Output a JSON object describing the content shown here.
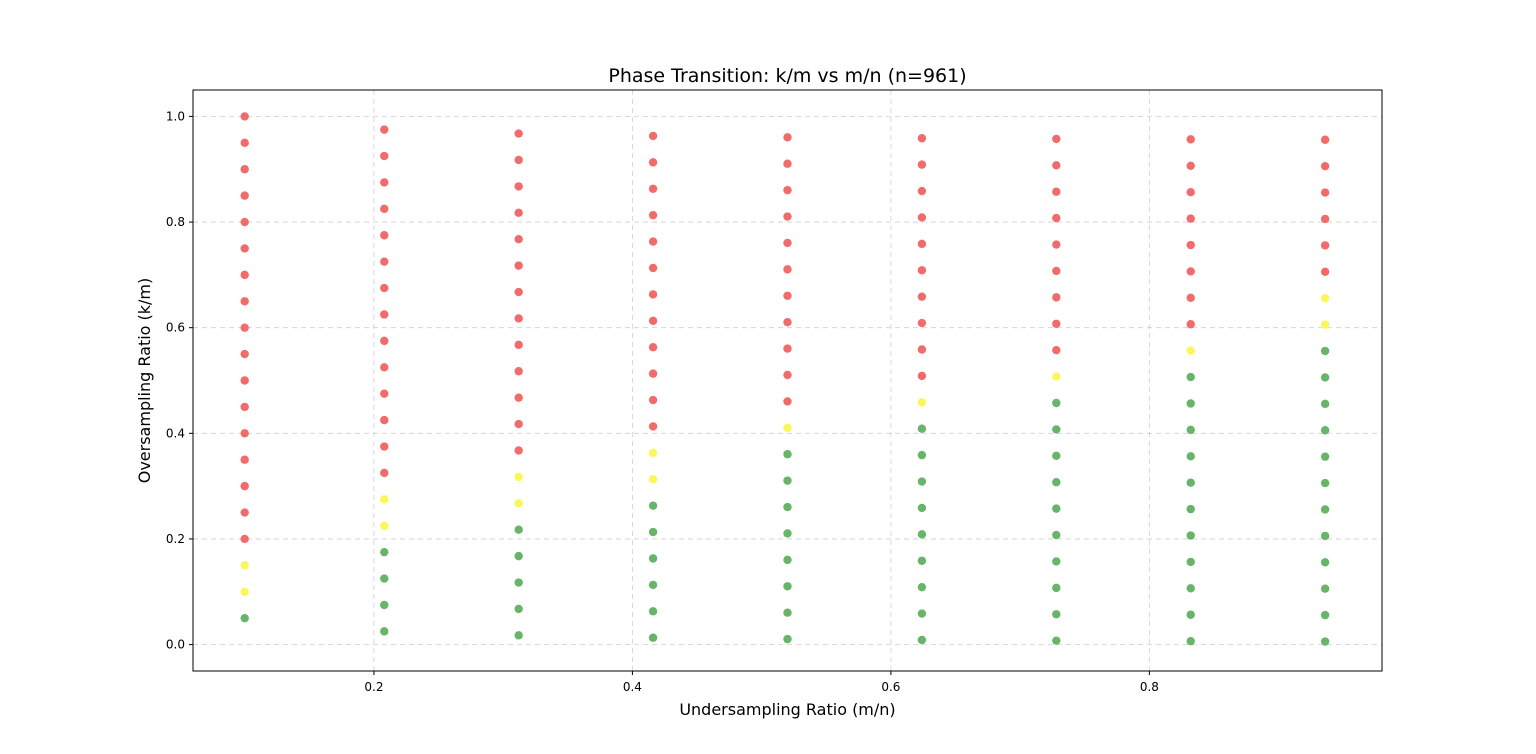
{
  "chart_data": {
    "type": "scatter",
    "title": "Phase Transition: k/m vs m/n (n=961)",
    "xlabel": "Undersampling Ratio (m/n)",
    "ylabel": "Oversampling Ratio (k/m)",
    "xlim": [
      0.06,
      0.98
    ],
    "ylim": [
      -0.05,
      1.05
    ],
    "xticks": [
      "0.2",
      "0.4",
      "0.6",
      "0.8"
    ],
    "yticks": [
      "0.0",
      "0.2",
      "0.4",
      "0.6",
      "0.8",
      "1.0"
    ],
    "grid": true,
    "colors": {
      "red": "#f26b6b",
      "yellow": "#fbf75a",
      "green": "#68b468"
    },
    "columns": [
      {
        "x": 0.1,
        "k0": 0.05,
        "step": 0.05,
        "n": 20,
        "green": 1,
        "yellow": 2
      },
      {
        "x": 0.2,
        "k0": 0.025,
        "step": 0.05,
        "n": 20,
        "green": 4,
        "yellow": 2
      },
      {
        "x": 0.3,
        "k0": 0.0175,
        "step": 0.05,
        "n": 20,
        "green": 5,
        "yellow": 2
      },
      {
        "x": 0.4,
        "k0": 0.013,
        "step": 0.05,
        "n": 20,
        "green": 6,
        "yellow": 2
      },
      {
        "x": 0.5,
        "k0": 0.0104,
        "step": 0.05,
        "n": 20,
        "green": 8,
        "yellow": 1
      },
      {
        "x": 0.6,
        "k0": 0.0087,
        "step": 0.05,
        "n": 20,
        "green": 9,
        "yellow": 1
      },
      {
        "x": 0.7,
        "k0": 0.0074,
        "step": 0.05,
        "n": 20,
        "green": 10,
        "yellow": 1
      },
      {
        "x": 0.8,
        "k0": 0.0065,
        "step": 0.05,
        "n": 20,
        "green": 11,
        "yellow": 1
      },
      {
        "x": 0.9,
        "k0": 0.0058,
        "step": 0.05,
        "n": 20,
        "green": 12,
        "yellow": 2
      }
    ],
    "column_x_positions": [
      0.1,
      0.208,
      0.312,
      0.416,
      0.52,
      0.624,
      0.728,
      0.832,
      0.936
    ]
  }
}
